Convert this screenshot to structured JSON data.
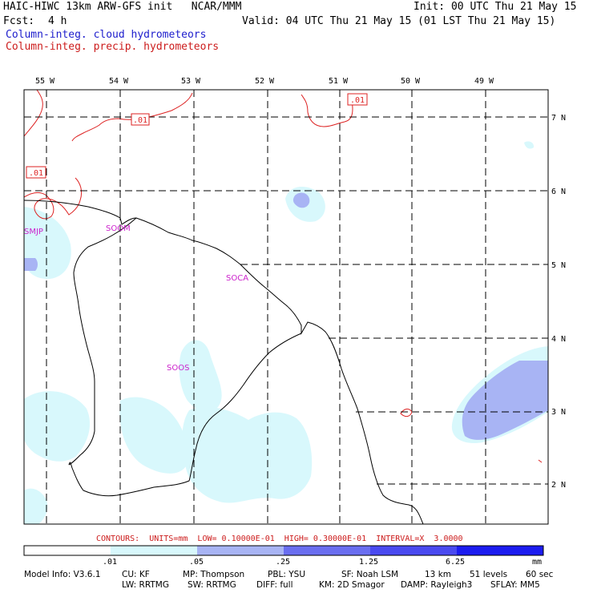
{
  "header": {
    "title": "HAIC-HIWC 13km ARW-GFS init   NCAR/MMM",
    "init": "Init: 00 UTC Thu 21 May 15",
    "fcst_label": "Fcst:",
    "fcst_value": "4 h",
    "valid": "Valid: 04 UTC Thu 21 May 15 (01 LST Thu 21 May 15)",
    "field1": "Column-integ. cloud hydrometeors",
    "field2": "Column-integ. precip. hydrometeors"
  },
  "colors": {
    "cloud_text": "#1c1ccc",
    "precip": "#dd2222",
    "station": "#cc22cc",
    "shade_1": "#d8f8fc",
    "shade_2": "#a8b4f4",
    "shade_3": "#6a6ef0",
    "shade_4": "#1c1cf0"
  },
  "map": {
    "lon_labels": [
      "55 W",
      "54 W",
      "53 W",
      "52 W",
      "51 W",
      "50 W",
      "49 W"
    ],
    "lat_labels": [
      "7 N",
      "6 N",
      "5 N",
      "4 N",
      "3 N",
      "2 N"
    ],
    "contour_labels": [
      ".01",
      ".01",
      ".01"
    ],
    "stations": [
      "SMJP",
      "SOOM",
      "SOCA",
      "SOOS"
    ]
  },
  "colorbar": {
    "contours_line": "CONTOURS:  UNITS=mm  LOW= 0.10000E-01  HIGH= 0.30000E-01  INTERVAL=X  3.0000",
    "ticks": [
      ".01",
      ".05",
      ".25",
      "1.25",
      "6.25"
    ],
    "units": "mm"
  },
  "footer": {
    "model_info": "Model Info: V3.6.1",
    "cu": "CU: KF",
    "mp": "MP: Thompson",
    "pbl": "PBL: YSU",
    "sf": "SF: Noah LSM",
    "res": "13 km",
    "levels": "51 levels",
    "dt": "60 sec",
    "lw": "LW: RRTMG",
    "sw": "SW: RRTMG",
    "diff": "DIFF: full",
    "km": "KM: 2D Smagor",
    "damp": "DAMP: Rayleigh3",
    "sflay": "SFLAY: MM5"
  }
}
